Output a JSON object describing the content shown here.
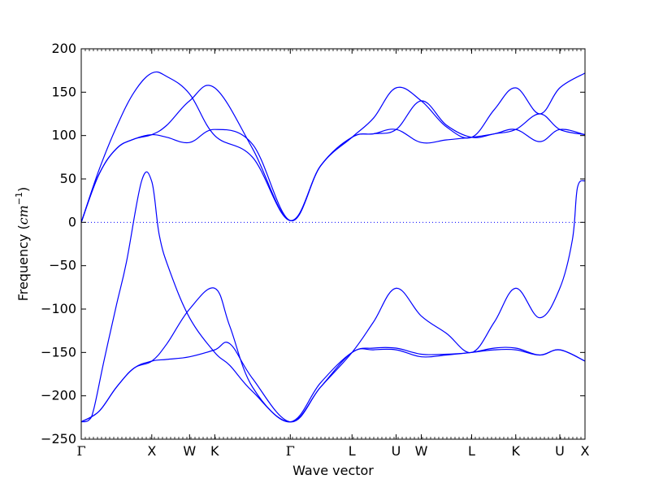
{
  "chart_data": {
    "type": "line",
    "xlabel": "Wave vector",
    "ylabel_prefix": "Frequency (",
    "ylabel_unit": "cm",
    "ylabel_exponent": "−1",
    "ylabel_suffix": ")",
    "ylim": [
      -250,
      200
    ],
    "y_ticks": [
      -250,
      -200,
      -150,
      -100,
      -50,
      0,
      50,
      100,
      150,
      200
    ],
    "y_tick_labels": [
      "−250",
      "−200",
      "−150",
      "−100",
      "−50",
      "0",
      "50",
      "100",
      "150",
      "200"
    ],
    "x_range": [
      0,
      2.0
    ],
    "high_symmetry_points": [
      {
        "label": "Γ",
        "x": 0.0
      },
      {
        "label": "X",
        "x": 0.28
      },
      {
        "label": "W",
        "x": 0.43
      },
      {
        "label": "K",
        "x": 0.53
      },
      {
        "label": "Γ",
        "x": 0.83
      },
      {
        "label": "L",
        "x": 1.075
      },
      {
        "label": "U",
        "x": 1.25
      },
      {
        "label": "W",
        "x": 1.35
      },
      {
        "label": "L",
        "x": 1.55
      },
      {
        "label": "K",
        "x": 1.725
      },
      {
        "label": "U",
        "x": 1.9
      },
      {
        "label": "X",
        "x": 2.0
      }
    ],
    "zero_line": {
      "y": 0,
      "style": "dotted",
      "color": "#0000ff"
    },
    "line_color": "#0000ff",
    "grid": false,
    "series": [
      {
        "points": [
          [
            0,
            0
          ],
          [
            0.07,
            60
          ],
          [
            0.14,
            110
          ],
          [
            0.21,
            150
          ],
          [
            0.28,
            172
          ],
          [
            0.34,
            168
          ],
          [
            0.43,
            148
          ],
          [
            0.53,
            100
          ],
          [
            0.68,
            75
          ],
          [
            0.83,
            2
          ],
          [
            0.95,
            65
          ],
          [
            1.075,
            98
          ],
          [
            1.16,
            120
          ],
          [
            1.25,
            155
          ],
          [
            1.35,
            140
          ],
          [
            1.45,
            110
          ],
          [
            1.55,
            98
          ],
          [
            1.64,
            130
          ],
          [
            1.725,
            155
          ],
          [
            1.82,
            125
          ],
          [
            1.9,
            155
          ],
          [
            2.0,
            172
          ]
        ]
      },
      {
        "points": [
          [
            0,
            0
          ],
          [
            0.07,
            55
          ],
          [
            0.14,
            85
          ],
          [
            0.21,
            96
          ],
          [
            0.28,
            101
          ],
          [
            0.34,
            112
          ],
          [
            0.43,
            140
          ],
          [
            0.53,
            155
          ],
          [
            0.68,
            85
          ],
          [
            0.83,
            2
          ],
          [
            0.95,
            65
          ],
          [
            1.075,
            98
          ],
          [
            1.16,
            102
          ],
          [
            1.25,
            107
          ],
          [
            1.35,
            140
          ],
          [
            1.45,
            112
          ],
          [
            1.55,
            98
          ],
          [
            1.64,
            102
          ],
          [
            1.725,
            107
          ],
          [
            1.82,
            93
          ],
          [
            1.9,
            107
          ],
          [
            2.0,
            101
          ]
        ]
      },
      {
        "points": [
          [
            0,
            0
          ],
          [
            0.07,
            55
          ],
          [
            0.14,
            85
          ],
          [
            0.21,
            96
          ],
          [
            0.28,
            101
          ],
          [
            0.34,
            98
          ],
          [
            0.43,
            92
          ],
          [
            0.53,
            107
          ],
          [
            0.68,
            90
          ],
          [
            0.83,
            2
          ],
          [
            0.95,
            65
          ],
          [
            1.075,
            98
          ],
          [
            1.16,
            102
          ],
          [
            1.25,
            107
          ],
          [
            1.35,
            92
          ],
          [
            1.45,
            95
          ],
          [
            1.55,
            98
          ],
          [
            1.64,
            102
          ],
          [
            1.725,
            107
          ],
          [
            1.82,
            125
          ],
          [
            1.9,
            107
          ],
          [
            2.0,
            101
          ]
        ]
      },
      {
        "points": [
          [
            0,
            -230
          ],
          [
            0.03,
            -228
          ],
          [
            0.05,
            -215
          ],
          [
            0.09,
            -160
          ],
          [
            0.14,
            -95
          ],
          [
            0.18,
            -45
          ],
          [
            0.24,
            48
          ],
          [
            0.28,
            47
          ],
          [
            0.31,
            -15
          ],
          [
            0.35,
            -55
          ],
          [
            0.43,
            -110
          ],
          [
            0.53,
            -150
          ],
          [
            0.59,
            -165
          ],
          [
            0.68,
            -195
          ],
          [
            0.83,
            -230
          ],
          [
            0.95,
            -185
          ],
          [
            1.075,
            -150
          ],
          [
            1.16,
            -145
          ],
          [
            1.25,
            -145
          ],
          [
            1.35,
            -152
          ],
          [
            1.45,
            -152
          ],
          [
            1.55,
            -150
          ],
          [
            1.64,
            -145
          ],
          [
            1.725,
            -145
          ],
          [
            1.82,
            -153
          ],
          [
            1.9,
            -147
          ],
          [
            2.0,
            -160
          ]
        ]
      },
      {
        "points": [
          [
            0,
            -230
          ],
          [
            0.07,
            -218
          ],
          [
            0.14,
            -190
          ],
          [
            0.21,
            -168
          ],
          [
            0.28,
            -160
          ],
          [
            0.34,
            -140
          ],
          [
            0.43,
            -100
          ],
          [
            0.53,
            -76
          ],
          [
            0.59,
            -120
          ],
          [
            0.68,
            -190
          ],
          [
            0.83,
            -230
          ],
          [
            0.95,
            -190
          ],
          [
            1.075,
            -150
          ],
          [
            1.16,
            -115
          ],
          [
            1.25,
            -76
          ],
          [
            1.35,
            -108
          ],
          [
            1.45,
            -128
          ],
          [
            1.55,
            -150
          ],
          [
            1.64,
            -115
          ],
          [
            1.725,
            -76
          ],
          [
            1.82,
            -110
          ],
          [
            1.9,
            -76
          ],
          [
            1.95,
            -20
          ],
          [
            1.97,
            40
          ],
          [
            2.0,
            48
          ]
        ]
      },
      {
        "points": [
          [
            0,
            -230
          ],
          [
            0.07,
            -218
          ],
          [
            0.14,
            -190
          ],
          [
            0.21,
            -168
          ],
          [
            0.28,
            -160
          ],
          [
            0.34,
            -158
          ],
          [
            0.43,
            -155
          ],
          [
            0.53,
            -147
          ],
          [
            0.59,
            -140
          ],
          [
            0.68,
            -180
          ],
          [
            0.83,
            -230
          ],
          [
            0.95,
            -190
          ],
          [
            1.075,
            -150
          ],
          [
            1.16,
            -147
          ],
          [
            1.25,
            -147
          ],
          [
            1.35,
            -155
          ],
          [
            1.45,
            -153
          ],
          [
            1.55,
            -150
          ],
          [
            1.64,
            -147
          ],
          [
            1.725,
            -147
          ],
          [
            1.82,
            -153
          ],
          [
            1.9,
            -147
          ],
          [
            2.0,
            -160
          ]
        ]
      }
    ]
  }
}
